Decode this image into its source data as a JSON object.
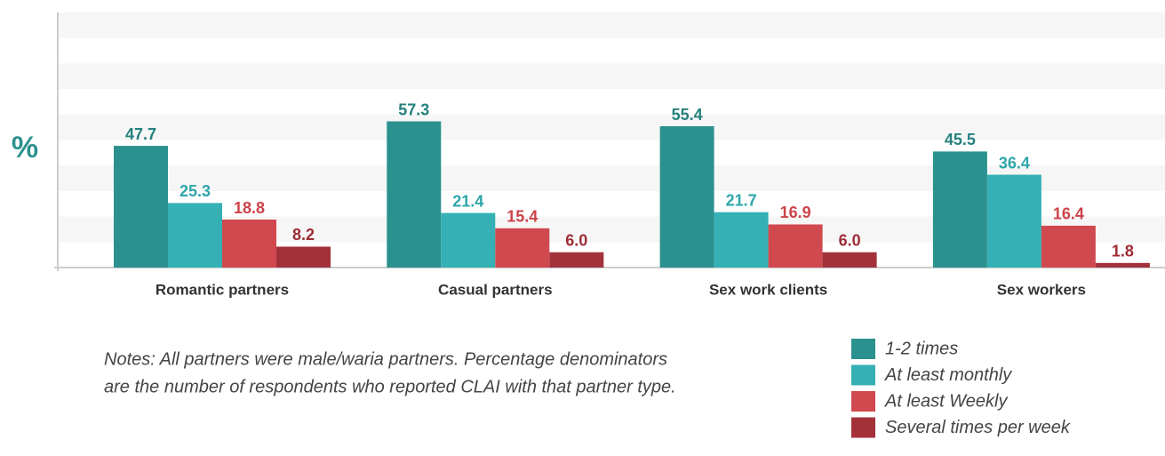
{
  "chart_data": {
    "type": "bar",
    "y_label": "%",
    "categories": [
      "Romantic partners",
      "Casual partners",
      "Sex work clients",
      "Sex workers"
    ],
    "series": [
      {
        "name": "1-2 times",
        "color": "#2b918f",
        "label_color": "#25807e",
        "values": [
          47.7,
          57.3,
          55.4,
          45.5
        ],
        "value_labels": [
          "47.7",
          "57.3",
          "55.4",
          "45.5"
        ]
      },
      {
        "name": "At least monthly",
        "color": "#35b1b5",
        "label_color": "#2ea6aa",
        "values": [
          25.3,
          21.4,
          21.7,
          36.4
        ],
        "value_labels": [
          "25.3",
          "21.4",
          "21.7",
          "36.4"
        ]
      },
      {
        "name": "At least Weekly",
        "color": "#d0494e",
        "label_color": "#cc4349",
        "values": [
          18.8,
          15.4,
          16.9,
          16.4
        ],
        "value_labels": [
          "18.8",
          "15.4",
          "16.9",
          "16.4"
        ]
      },
      {
        "name": "Several times per week",
        "color": "#a2313a",
        "label_color": "#9d2c35",
        "values": [
          8.2,
          6.0,
          6.0,
          1.8
        ],
        "value_labels": [
          "8.2",
          "6.0",
          "6.0",
          "1.8"
        ]
      }
    ],
    "ylim": [
      0,
      100
    ],
    "yticks": [
      0,
      10,
      20,
      30,
      40,
      50,
      60,
      70,
      80,
      90,
      100
    ],
    "grid": "bands",
    "notes": [
      "Notes: All partners were male/waria partners. Percentage denominators",
      "are the number of respondents who reported CLAI with that partner type."
    ],
    "legend": "bottom-right"
  }
}
